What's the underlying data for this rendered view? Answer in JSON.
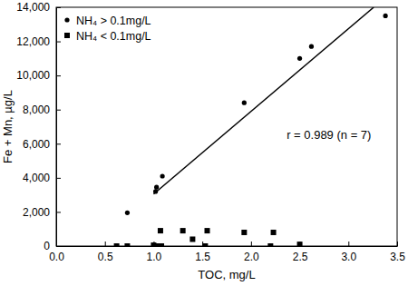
{
  "chart_data": {
    "type": "scatter",
    "x_label": "TOC, mg/L",
    "y_label": "Fe + Mn, µg/L",
    "annotation": "r = 0.989 (n = 7)",
    "legend": "upper left",
    "grid": false,
    "xlim": [
      0,
      3.5
    ],
    "ylim": [
      0,
      14000
    ],
    "xticks": [
      {
        "value": 0,
        "label": "0.0"
      },
      {
        "value": 0.5,
        "label": "0.5"
      },
      {
        "value": 1,
        "label": "1.0"
      },
      {
        "value": 1.5,
        "label": "1.5"
      },
      {
        "value": 2,
        "label": "2.0"
      },
      {
        "value": 2.5,
        "label": "2.5"
      },
      {
        "value": 3,
        "label": "3.0"
      },
      {
        "value": 3.5,
        "label": "3.5"
      }
    ],
    "yticks": [
      0,
      {
        "value": 2000,
        "label": "2,000"
      },
      {
        "value": 4000,
        "label": "4,000"
      },
      {
        "value": 6000,
        "label": "6,000"
      },
      {
        "value": 8000,
        "label": "8,000"
      },
      {
        "value": 10000,
        "label": "10,000"
      },
      {
        "value": 12000,
        "label": "12,000"
      },
      {
        "value": 14000,
        "label": "14,000"
      }
    ],
    "series": [
      {
        "name": "NH₄ > 0.1mg/L",
        "marker": "circle",
        "color": "#000000",
        "x": [
          0.73,
          1.02,
          1.03,
          1.09,
          1.93,
          2.5,
          2.62,
          3.38
        ],
        "values": [
          1950,
          3200,
          3450,
          4100,
          8400,
          11000,
          11700,
          13500
        ]
      },
      {
        "name": "NH₄ < 0.1mg/L",
        "marker": "square",
        "color": "#000000",
        "x": [
          0.62,
          0.73,
          1.0,
          1.03,
          1.07,
          1.08,
          1.3,
          1.4,
          1.53,
          1.55,
          1.93,
          2.2,
          2.23,
          2.5
        ],
        "values": [
          0,
          0,
          50,
          0,
          900,
          0,
          900,
          400,
          0,
          900,
          800,
          0,
          800,
          100
        ]
      },
      {
        "type": "line",
        "line_style": "solid",
        "color": "#000000",
        "x": [
          1.0,
          3.26
        ],
        "values": [
          3050,
          14000
        ]
      }
    ]
  }
}
